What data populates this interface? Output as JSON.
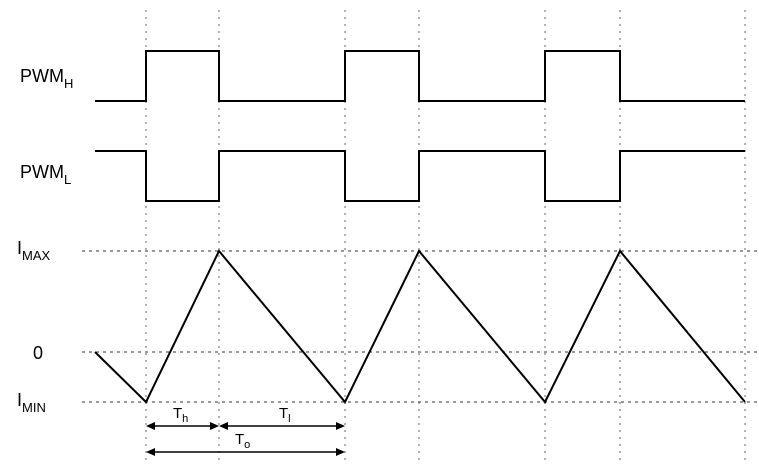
{
  "labels": {
    "pwm_h": {
      "main": "PWM",
      "sub": "H"
    },
    "pwm_l": {
      "main": "PWM",
      "sub": "L"
    },
    "i_max": {
      "main": "I",
      "sub": "MAX"
    },
    "zero": "0",
    "i_min": {
      "main": "I",
      "sub": "MIN"
    }
  },
  "intervals": {
    "th": {
      "main": "T",
      "sub": "h"
    },
    "tl": {
      "main": "T",
      "sub": "l"
    },
    "to": {
      "main": "T",
      "sub": "o"
    }
  }
}
